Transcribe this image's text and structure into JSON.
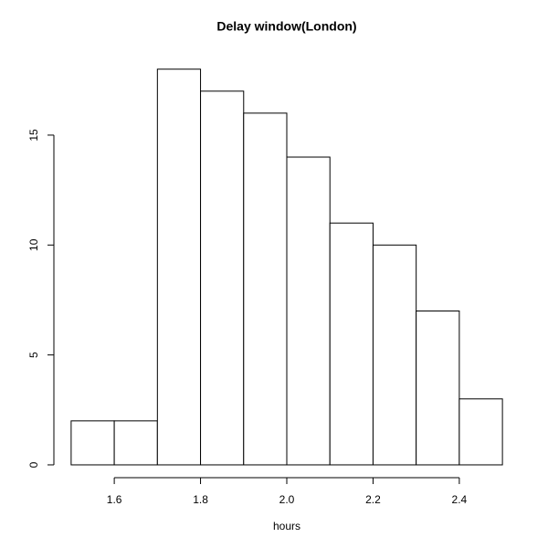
{
  "chart_data": {
    "type": "histogram",
    "title": "Delay window(London)",
    "xlabel": "hours",
    "bins": [
      1.5,
      1.6,
      1.7,
      1.8,
      1.9,
      2.0,
      2.1,
      2.2,
      2.3,
      2.4,
      2.5
    ],
    "values": [
      2,
      2,
      18,
      17,
      16,
      14,
      11,
      10,
      7,
      3
    ],
    "color": "#ffffff",
    "xlim": [
      1.46,
      2.54
    ],
    "ylim": [
      -0.72,
      18.72
    ],
    "xticks": [
      1.6,
      1.8,
      {
        "value": 2,
        "label": "2.0"
      },
      2.2,
      2.4
    ],
    "yticks": [
      0,
      5,
      10,
      15
    ]
  }
}
